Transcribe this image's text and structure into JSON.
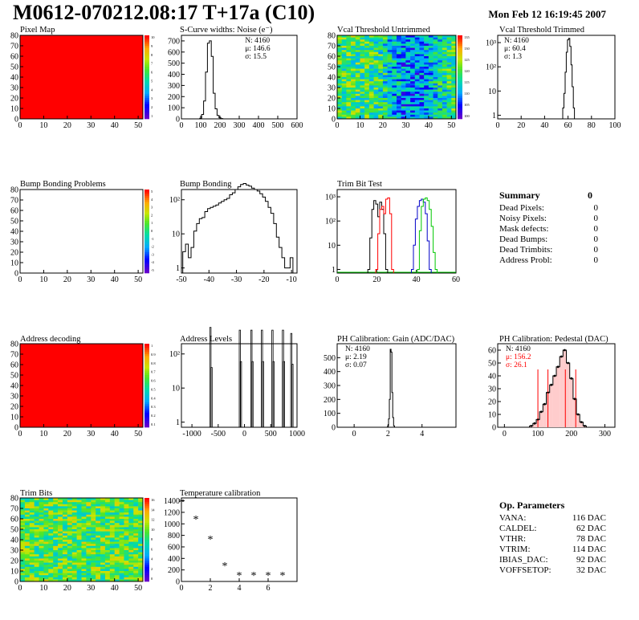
{
  "header": {
    "title": "M0612-070212.08:17 T+17a (C10)",
    "date": "Mon Feb 12 16:19:45 2007"
  },
  "colors": {
    "axis": "#000000",
    "map_red": "#ff0000",
    "trim_red": "#ff0000",
    "trim_blue": "#0000c8",
    "trim_green": "#00c800",
    "pedestal_red": "#ff0000"
  },
  "summary": {
    "title": "Summary",
    "total": "0",
    "rows": [
      {
        "label": "Dead Pixels:",
        "value": "0"
      },
      {
        "label": "Noisy Pixels:",
        "value": "0"
      },
      {
        "label": "Mask defects:",
        "value": "0"
      },
      {
        "label": "Dead Bumps:",
        "value": "0"
      },
      {
        "label": "Dead Trimbits:",
        "value": "0"
      },
      {
        "label": "Address Probl:",
        "value": "0"
      }
    ]
  },
  "op_params": {
    "title": "Op. Parameters",
    "rows": [
      {
        "label": "VANA:",
        "value": "116 DAC"
      },
      {
        "label": "CALDEL:",
        "value": "62 DAC"
      },
      {
        "label": "VTHR:",
        "value": "78 DAC"
      },
      {
        "label": "VTRIM:",
        "value": "114 DAC"
      },
      {
        "label": "IBIAS_DAC:",
        "value": "92 DAC"
      },
      {
        "label": "VOFFSETOP:",
        "value": "32 DAC"
      }
    ]
  },
  "chart_data": [
    {
      "id": "pixel_map",
      "type": "heatmap",
      "title": "Pixel Map",
      "xlim": [
        0,
        52
      ],
      "ylim": [
        0,
        80
      ],
      "xticks": [
        "0",
        "10",
        "20",
        "30",
        "40",
        "50"
      ],
      "yticks": [
        "0",
        "10",
        "20",
        "30",
        "40",
        "50",
        "60",
        "70",
        "80"
      ],
      "fill": "uniform-max",
      "palette_labels": [
        "10",
        "9",
        "8",
        "7",
        "6",
        "5",
        "4",
        "3",
        "2",
        "1"
      ]
    },
    {
      "id": "scurve",
      "type": "bar",
      "title": "S-Curve widths: Noise (e⁻)",
      "xlim": [
        0,
        600
      ],
      "ylim": [
        0,
        750
      ],
      "xticks": [
        "0",
        "100",
        "200",
        "300",
        "400",
        "500",
        "600"
      ],
      "yticks": [
        "0",
        "100",
        "200",
        "300",
        "400",
        "500",
        "600",
        "700"
      ],
      "stats": [
        "N: 4160",
        "μ: 146.6",
        "σ: 15.5"
      ],
      "x": [
        100,
        110,
        120,
        130,
        140,
        150,
        160,
        170,
        180,
        190,
        200,
        210
      ],
      "values": [
        5,
        40,
        160,
        420,
        680,
        700,
        560,
        230,
        90,
        30,
        10,
        3
      ]
    },
    {
      "id": "vcal_untrimmed",
      "type": "heatmap",
      "title": "Vcal Threshold Untrimmed",
      "xlim": [
        0,
        52
      ],
      "ylim": [
        0,
        80
      ],
      "xticks": [
        "0",
        "10",
        "20",
        "30",
        "40",
        "50"
      ],
      "yticks": [
        "0",
        "10",
        "20",
        "30",
        "40",
        "50",
        "60",
        "70",
        "80"
      ],
      "palette_labels": [
        "135",
        "130",
        "125",
        "120",
        "115",
        "110",
        "105",
        "100"
      ],
      "fill": "noise-bluecenter"
    },
    {
      "id": "vcal_trimmed",
      "type": "bar",
      "title": "Vcal Threshold Trimmed",
      "xlim": [
        0,
        100
      ],
      "log": true,
      "xticks": [
        "0",
        "20",
        "40",
        "60",
        "80",
        "100"
      ],
      "yticks": [
        "1",
        "10",
        "10²",
        "10³"
      ],
      "stats": [
        "N: 4160",
        "μ: 60.4",
        "σ:  1.3"
      ],
      "x": [
        56,
        57,
        58,
        59,
        60,
        61,
        62,
        63,
        64,
        65
      ],
      "values": [
        2,
        8,
        60,
        400,
        1300,
        1500,
        700,
        120,
        15,
        2
      ]
    },
    {
      "id": "bump_problems",
      "type": "heatmap",
      "title": "Bump Bonding Problems",
      "xlim": [
        0,
        52
      ],
      "ylim": [
        0,
        80
      ],
      "xticks": [
        "0",
        "10",
        "20",
        "30",
        "40",
        "50"
      ],
      "yticks": [
        "0",
        "10",
        "20",
        "30",
        "40",
        "50",
        "60",
        "70",
        "80"
      ],
      "palette_labels": [
        "5",
        "4",
        "3",
        "2",
        "1",
        "0",
        "-1",
        "-2",
        "-3",
        "-4",
        "-5"
      ],
      "fill": "empty"
    },
    {
      "id": "bump_bonding",
      "type": "bar",
      "title": "Bump Bonding",
      "xlim": [
        -50,
        -8
      ],
      "log": true,
      "xticks": [
        "-50",
        "-40",
        "-30",
        "-20",
        "-10"
      ],
      "yticks": [
        "1",
        "10",
        "10²"
      ],
      "x": [
        -49,
        -48,
        -47,
        -46,
        -45,
        -44,
        -43,
        -42,
        -41,
        -40,
        -39,
        -38,
        -37,
        -36,
        -35,
        -34,
        -33,
        -32,
        -31,
        -30,
        -29,
        -28,
        -27,
        -26,
        -25,
        -24,
        -23,
        -22,
        -21,
        -20,
        -19,
        -18,
        -17,
        -16,
        -15,
        -14,
        -13,
        -12,
        -11,
        -10
      ],
      "values": [
        3,
        5,
        2,
        4,
        12,
        20,
        28,
        30,
        45,
        55,
        60,
        65,
        70,
        80,
        90,
        100,
        110,
        140,
        160,
        200,
        240,
        280,
        300,
        270,
        250,
        220,
        200,
        180,
        150,
        120,
        90,
        60,
        40,
        20,
        8,
        4,
        2,
        1,
        1,
        2
      ]
    },
    {
      "id": "trim_bit_test",
      "type": "line",
      "title": "Trim Bit Test",
      "xlim": [
        0,
        60
      ],
      "log": true,
      "xticks": [
        "0",
        "20",
        "40",
        "60"
      ],
      "yticks": [
        "1",
        "10",
        "10²",
        "10³"
      ],
      "series": [
        {
          "color": "black",
          "x": [
            16,
            17,
            18,
            19,
            20,
            21,
            22,
            23,
            24,
            25
          ],
          "values": [
            1,
            20,
            300,
            700,
            500,
            150,
            600,
            300,
            30,
            1
          ]
        },
        {
          "color": "red",
          "x": [
            20,
            21,
            22,
            23,
            24,
            25,
            26,
            27,
            28
          ],
          "values": [
            1,
            30,
            300,
            400,
            200,
            800,
            900,
            200,
            1
          ]
        },
        {
          "color": "blue",
          "x": [
            38,
            39,
            40,
            41,
            42,
            43,
            44,
            45,
            46,
            47
          ],
          "values": [
            1,
            10,
            120,
            400,
            700,
            800,
            600,
            200,
            15,
            1
          ]
        },
        {
          "color": "green",
          "x": [
            41,
            42,
            43,
            44,
            45,
            46,
            47,
            48,
            49,
            50
          ],
          "values": [
            1,
            40,
            400,
            800,
            900,
            700,
            300,
            60,
            5,
            1
          ]
        }
      ]
    },
    {
      "id": "address_decoding",
      "type": "heatmap",
      "title": "Address decoding",
      "xlim": [
        0,
        52
      ],
      "ylim": [
        0,
        80
      ],
      "xticks": [
        "0",
        "10",
        "20",
        "30",
        "40",
        "50"
      ],
      "yticks": [
        "0",
        "10",
        "20",
        "30",
        "40",
        "50",
        "60",
        "70",
        "80"
      ],
      "palette_labels": [
        "1",
        "0.9",
        "0.8",
        "0.7",
        "0.6",
        "0.5",
        "0.4",
        "0.3",
        "0.2",
        "0.1"
      ],
      "fill": "uniform-max"
    },
    {
      "id": "address_levels",
      "type": "bar",
      "title": "Address Levels",
      "xlim": [
        -1200,
        1000
      ],
      "log": true,
      "xticks": [
        "-1000",
        "-500",
        "0",
        "500",
        "1000"
      ],
      "yticks": [
        "1",
        "10",
        "10²"
      ],
      "x": [
        -660,
        -640,
        -100,
        -80,
        120,
        140,
        320,
        340,
        520,
        540,
        720,
        740,
        880,
        900
      ],
      "values": [
        600,
        40,
        500,
        60,
        500,
        60,
        500,
        60,
        500,
        60,
        500,
        60,
        400,
        50
      ]
    },
    {
      "id": "ph_gain",
      "type": "bar",
      "title": "PH Calibration: Gain (ADC/DAC)",
      "xlim": [
        -1,
        6
      ],
      "ylim": [
        0,
        600
      ],
      "xticks": [
        "0",
        "2",
        "4"
      ],
      "yticks": [
        "0",
        "100",
        "200",
        "300",
        "400",
        "500"
      ],
      "stats": [
        "N: 4160",
        "μ: 2.19",
        "σ: 0.07"
      ],
      "x": [
        2.0,
        2.05,
        2.1,
        2.15,
        2.2,
        2.25,
        2.3,
        2.35
      ],
      "values": [
        10,
        60,
        200,
        560,
        540,
        250,
        70,
        10
      ]
    },
    {
      "id": "ph_pedestal",
      "type": "bar",
      "title": "PH Calibration: Pedestal (DAC)",
      "xlim": [
        -20,
        330
      ],
      "ylim": [
        0,
        65
      ],
      "xticks": [
        "0",
        "100",
        "200",
        "300"
      ],
      "yticks": [
        "0",
        "10",
        "20",
        "30",
        "40",
        "50",
        "60"
      ],
      "stats": [
        "N: 4160",
        "μ: 156.2",
        "σ: 26.1"
      ],
      "x": [
        80,
        90,
        100,
        110,
        120,
        130,
        140,
        150,
        160,
        170,
        180,
        190,
        200,
        210,
        220,
        230,
        240
      ],
      "values": [
        1,
        3,
        6,
        12,
        18,
        27,
        33,
        40,
        47,
        55,
        60,
        50,
        38,
        22,
        10,
        4,
        1
      ],
      "markers": [
        100,
        130,
        182,
        213
      ]
    },
    {
      "id": "trim_bits",
      "type": "heatmap",
      "title": "Trim Bits",
      "xlim": [
        0,
        52
      ],
      "ylim": [
        0,
        80
      ],
      "xticks": [
        "0",
        "10",
        "20",
        "30",
        "40",
        "50"
      ],
      "yticks": [
        "0",
        "10",
        "20",
        "30",
        "40",
        "50",
        "60",
        "70",
        "80"
      ],
      "palette_labels": [
        "16",
        "14",
        "12",
        "10",
        "8",
        "6",
        "4",
        "2",
        "0"
      ],
      "fill": "noise-green"
    },
    {
      "id": "temperature",
      "type": "scatter",
      "title": "Temperature calibration",
      "xlim": [
        0,
        8
      ],
      "ylim": [
        0,
        1450
      ],
      "xticks": [
        "0",
        "2",
        "4",
        "6"
      ],
      "yticks": [
        "0",
        "200",
        "400",
        "600",
        "800",
        "1000",
        "1200",
        "1400"
      ],
      "x": [
        0,
        1,
        2,
        3,
        4,
        5,
        6,
        7
      ],
      "values": [
        1380,
        1090,
        740,
        280,
        110,
        110,
        110,
        110
      ]
    }
  ]
}
